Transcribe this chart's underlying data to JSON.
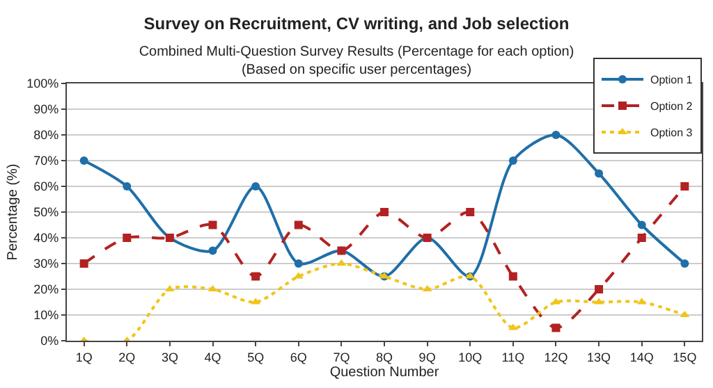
{
  "chart_data": {
    "type": "line",
    "title": "Survey on Recruitment, CV writing, and Job selection",
    "subtitle": "Combined Multi-Question Survey Results (Percentage for each option)\n(Based on specific user percentages)",
    "xlabel": "Question Number",
    "ylabel": "Percentage (%)",
    "categories": [
      "1Q",
      "2Q",
      "3Q",
      "4Q",
      "5Q",
      "6Q",
      "7Q",
      "8Q",
      "9Q",
      "10Q",
      "11Q",
      "12Q",
      "13Q",
      "14Q",
      "15Q"
    ],
    "series": [
      {
        "name": "Option 1",
        "color": "#1f6fa8",
        "marker": "circle",
        "line_style": "solid",
        "values": [
          70,
          60,
          40,
          35,
          60,
          30,
          35,
          25,
          40,
          25,
          70,
          80,
          65,
          45,
          30
        ]
      },
      {
        "name": "Option 2",
        "color": "#b22222",
        "marker": "square",
        "line_style": "dashed",
        "values": [
          30,
          40,
          40,
          45,
          25,
          45,
          35,
          50,
          40,
          50,
          25,
          5,
          20,
          40,
          60
        ]
      },
      {
        "name": "Option 3",
        "color": "#f0c419",
        "marker": "triangle",
        "line_style": "dotted",
        "values": [
          0,
          0,
          20,
          20,
          15,
          25,
          30,
          25,
          20,
          25,
          5,
          15,
          15,
          15,
          10
        ]
      }
    ],
    "ylim": [
      0,
      100
    ],
    "yticks": [
      {
        "value": 0,
        "label": "0%"
      },
      {
        "value": 10,
        "label": "10%"
      },
      {
        "value": 20,
        "label": "20%"
      },
      {
        "value": 30,
        "label": "30%"
      },
      {
        "value": 40,
        "label": "40%"
      },
      {
        "value": 50,
        "label": "50%"
      },
      {
        "value": 60,
        "label": "60%"
      },
      {
        "value": 70,
        "label": "70%"
      },
      {
        "value": 80,
        "label": "80%"
      },
      {
        "value": 90,
        "label": "90%"
      },
      {
        "value": 100,
        "label": "100%"
      }
    ],
    "grid": "y",
    "legend": "top right"
  }
}
